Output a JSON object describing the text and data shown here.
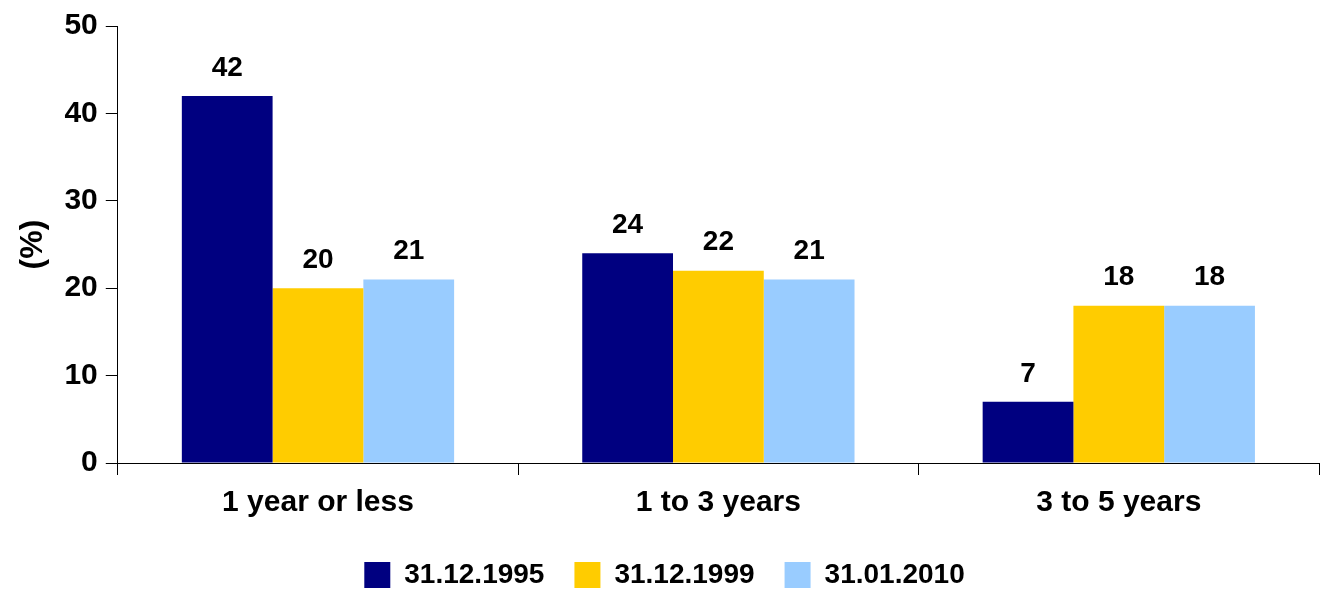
{
  "chart_data": {
    "type": "bar",
    "ylabel": "(%)",
    "categories": [
      "1 year or less",
      "1 to 3 years",
      "3 to 5 years"
    ],
    "series": [
      {
        "name": "31.12.1995",
        "color": "#000080",
        "values": [
          42,
          24,
          7
        ]
      },
      {
        "name": "31.12.1999",
        "color": "#ffcc00",
        "values": [
          20,
          22,
          18
        ]
      },
      {
        "name": "31.01.2010",
        "color": "#99ccff",
        "values": [
          21,
          21,
          18
        ]
      }
    ],
    "ylim": [
      0,
      50
    ],
    "yticks": [
      0,
      10,
      20,
      30,
      40,
      50
    ],
    "grid": false,
    "legend": "bottom",
    "data_labels": true
  }
}
